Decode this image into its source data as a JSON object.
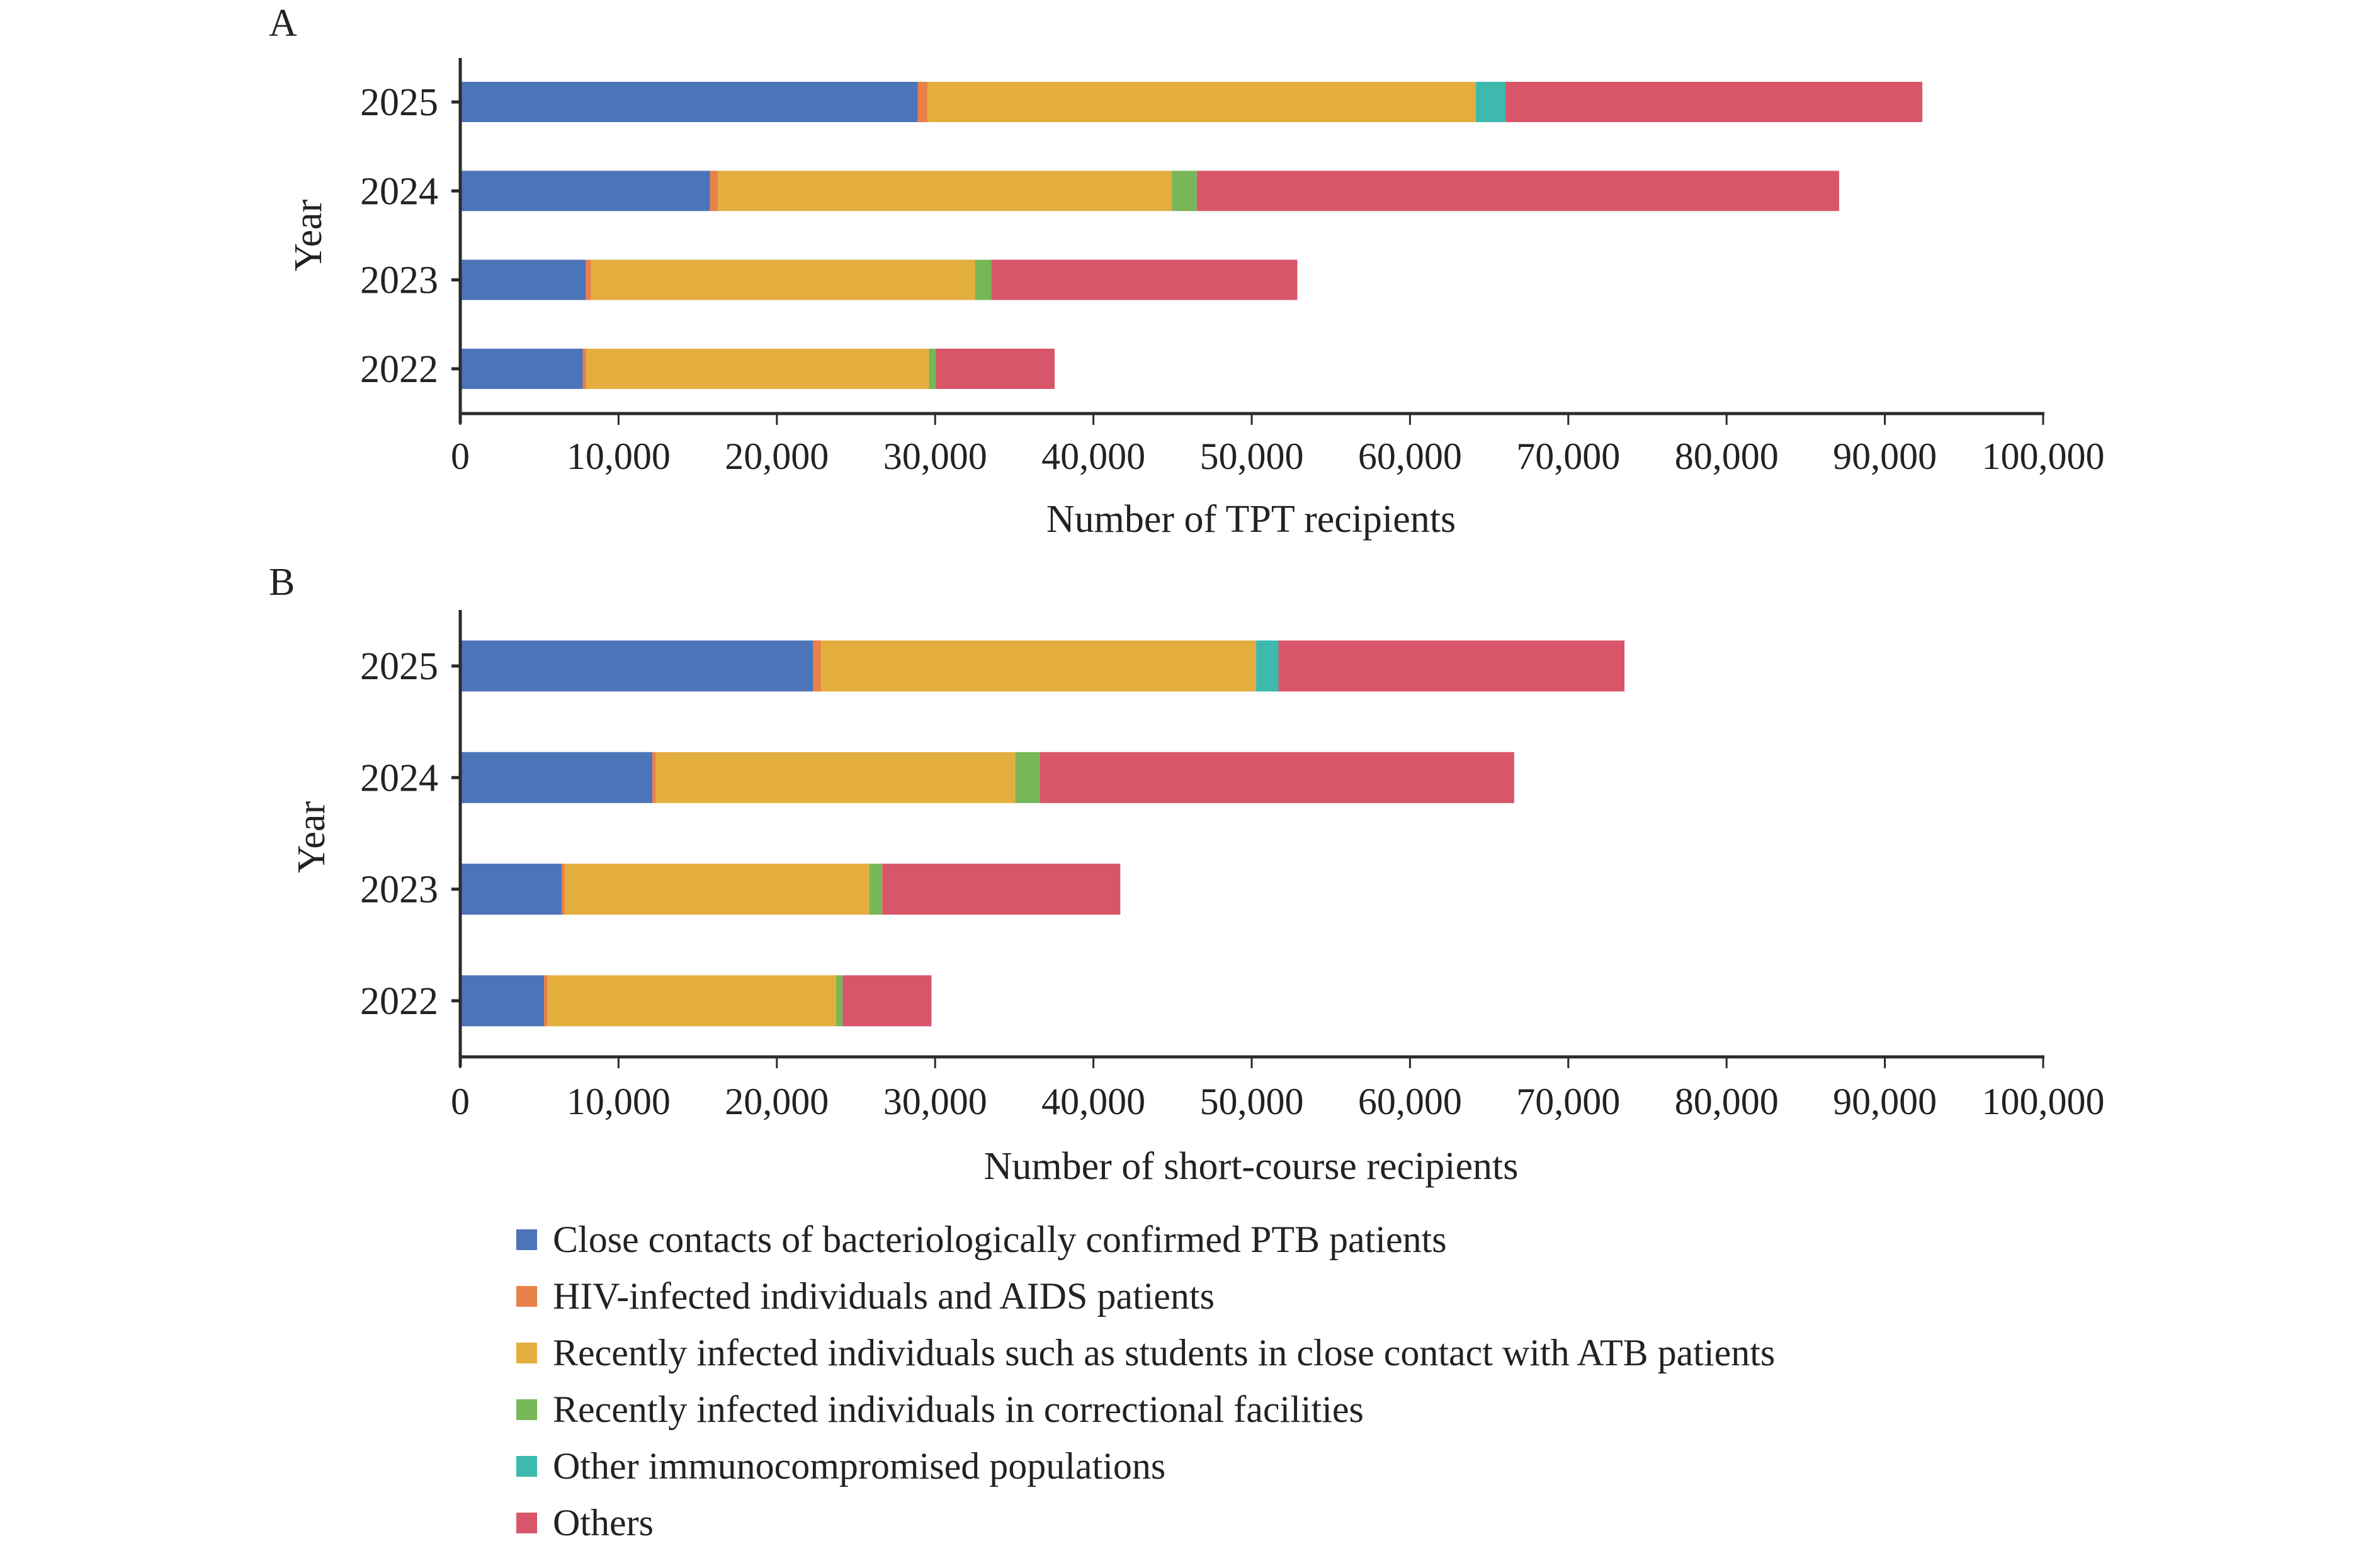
{
  "colors": {
    "close_contacts": "#4C74B8",
    "hiv": "#E8804A",
    "recent_students": "#E4AE3E",
    "correctional": "#77B757",
    "immunocompromised": "#3DB9AE",
    "others": "#D9566A",
    "axis": "#2B2B2B"
  },
  "legend": {
    "placement": "bottom-left",
    "items": [
      {
        "key": "close_contacts",
        "label": "Close contacts of bacteriologically confirmed PTB patients"
      },
      {
        "key": "hiv",
        "label": "HIV-infected individuals and AIDS patients"
      },
      {
        "key": "recent_students",
        "label": "Recently infected individuals such as students in close contact with ATB patients"
      },
      {
        "key": "correctional",
        "label": "Recently infected individuals in correctional facilities"
      },
      {
        "key": "immunocompromised",
        "label": "Other immunocompromised populations"
      },
      {
        "key": "others",
        "label": "Others"
      }
    ]
  },
  "chart_data": [
    {
      "panel": "A",
      "type": "bar",
      "orientation": "horizontal",
      "stacked": true,
      "title": "",
      "xlabel": "Number of TPT recipients",
      "ylabel": "Year",
      "xlim": [
        0,
        100000
      ],
      "xticks": [
        0,
        10000,
        20000,
        30000,
        40000,
        50000,
        60000,
        70000,
        80000,
        90000,
        100000
      ],
      "xtick_labels": [
        "0",
        "10,000",
        "20,000",
        "30,000",
        "40,000",
        "50,000",
        "60,000",
        "70,000",
        "80,000",
        "90,000",
        "100,000"
      ],
      "grid": false,
      "categories": [
        "2025",
        "2024",
        "2023",
        "2022"
      ],
      "series": [
        {
          "key": "close_contacts",
          "name": "Close contacts of bacteriologically confirmed PTB patients",
          "values": [
            28900,
            15780,
            7930,
            7740
          ]
        },
        {
          "key": "hiv",
          "name": "HIV-infected individuals and AIDS patients",
          "values": [
            620,
            500,
            330,
            220
          ]
        },
        {
          "key": "recent_students",
          "name": "Recently infected individuals such as students in close contact with ATB patients",
          "values": [
            34630,
            28670,
            24260,
            21650
          ]
        },
        {
          "key": "correctional",
          "name": "Recently infected individuals in correctional facilities",
          "values": [
            0,
            1580,
            1030,
            440
          ]
        },
        {
          "key": "immunocompromised",
          "name": "Other immunocompromised populations",
          "values": [
            1880,
            0,
            0,
            0
          ]
        },
        {
          "key": "others",
          "name": "Others",
          "values": [
            26340,
            40580,
            19330,
            7500
          ]
        }
      ]
    },
    {
      "panel": "B",
      "type": "bar",
      "orientation": "horizontal",
      "stacked": true,
      "title": "",
      "xlabel": "Number of short-course recipients",
      "ylabel": "Year",
      "xlim": [
        0,
        100000
      ],
      "xticks": [
        0,
        10000,
        20000,
        30000,
        40000,
        50000,
        60000,
        70000,
        80000,
        90000,
        100000
      ],
      "xtick_labels": [
        "0",
        "10,000",
        "20,000",
        "30,000",
        "40,000",
        "50,000",
        "60,000",
        "70,000",
        "80,000",
        "90,000",
        "100,000"
      ],
      "grid": false,
      "categories": [
        "2025",
        "2024",
        "2023",
        "2022"
      ],
      "series": [
        {
          "key": "close_contacts",
          "name": "Close contacts of bacteriologically confirmed PTB patients",
          "values": [
            22290,
            12130,
            6400,
            5290
          ]
        },
        {
          "key": "hiv",
          "name": "HIV-infected individuals and AIDS patients",
          "values": [
            500,
            230,
            200,
            200
          ]
        },
        {
          "key": "recent_students",
          "name": "Recently infected individuals such as students in close contact with ATB patients",
          "values": [
            27490,
            22700,
            19240,
            18250
          ]
        },
        {
          "key": "correctional",
          "name": "Recently infected individuals in correctional facilities",
          "values": [
            0,
            1560,
            820,
            410
          ]
        },
        {
          "key": "immunocompromised",
          "name": "Other immunocompromised populations",
          "values": [
            1410,
            0,
            0,
            0
          ]
        },
        {
          "key": "others",
          "name": "Others",
          "values": [
            21860,
            29960,
            15040,
            5620
          ]
        }
      ]
    }
  ]
}
